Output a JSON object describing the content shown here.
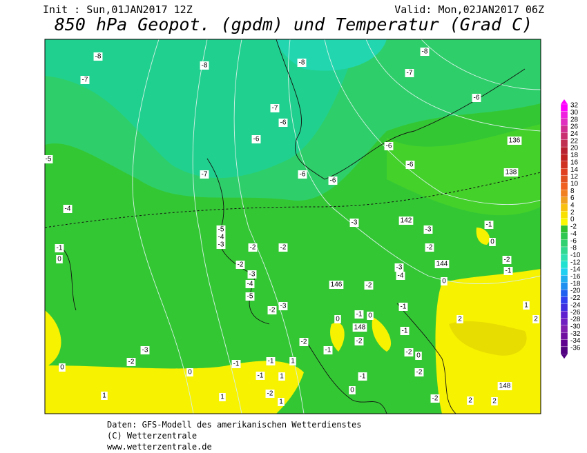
{
  "header": {
    "init": "Init : Sun,01JAN2017 12Z",
    "valid": "Valid: Mon,02JAN2017 06Z",
    "title": "850 hPa Geopot. (gpdm) und Temperatur (Grad C)"
  },
  "colorbar": {
    "levels": [
      32,
      30,
      28,
      26,
      24,
      22,
      20,
      18,
      16,
      14,
      12,
      10,
      8,
      6,
      4,
      2,
      0,
      -2,
      -4,
      -6,
      -8,
      -10,
      -12,
      -14,
      -16,
      -18,
      -20,
      -22,
      -24,
      -26,
      -28,
      -30,
      -32,
      -34,
      -36
    ]
  },
  "map": {
    "labels": [
      "-8",
      "-8",
      "-8",
      "-8",
      "-7",
      "-7",
      "-6",
      "-7",
      "-6",
      "-6",
      "-6",
      "136",
      "-5",
      "-6",
      "-7",
      "-6",
      "-6",
      "138",
      "-4",
      "-3",
      "142",
      "-3",
      "-1",
      "-5",
      "-4",
      "-3",
      "-2",
      "-2",
      "-2",
      "0",
      "-1",
      "0",
      "-2",
      "-3",
      "144",
      "-2",
      "-3",
      "-4",
      "-1",
      "-4",
      "146",
      "-2",
      "0",
      "-5",
      "-3",
      "-2",
      "-1",
      "1",
      "-1",
      "0",
      "0",
      "148",
      "-1",
      "2",
      "2",
      "-2",
      "-2",
      "-3",
      "-1",
      "-2",
      "0",
      "-2",
      "-1",
      "-1",
      "1",
      "0",
      "-1",
      "1",
      "-1",
      "-2",
      "0",
      "148",
      "-2",
      "1",
      "1",
      "1",
      "0",
      "-2",
      "2",
      "2"
    ]
  },
  "footer": {
    "lines": [
      "Daten: GFS-Modell des amerikanischen Wetterdienstes",
      "(C) Wetterzentrale",
      "www.wetterzentrale.de"
    ]
  }
}
